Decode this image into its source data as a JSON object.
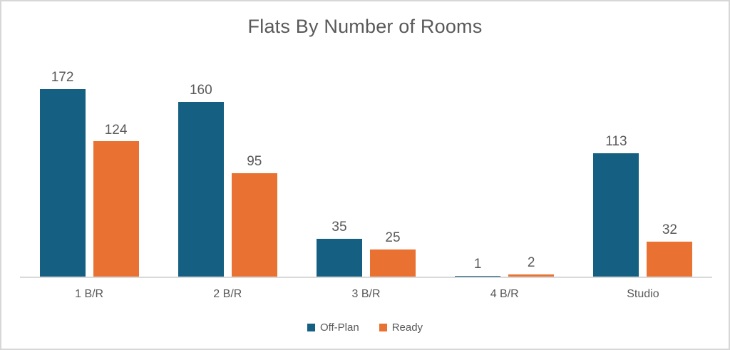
{
  "chart_data": {
    "type": "bar",
    "title": "Flats By Number of Rooms",
    "categories": [
      "1 B/R",
      "2 B/R",
      "3 B/R",
      "4 B/R",
      "Studio"
    ],
    "series": [
      {
        "name": "Off-Plan",
        "color": "#156082",
        "values": [
          172,
          160,
          35,
          1,
          113
        ]
      },
      {
        "name": "Ready",
        "color": "#E97132",
        "values": [
          124,
          95,
          25,
          2,
          32
        ]
      }
    ],
    "xlabel": "",
    "ylabel": "",
    "ylim": [
      0,
      180
    ],
    "grid": false,
    "legend_position": "bottom",
    "data_labels": true
  },
  "colors": {
    "text": "#595959",
    "axis_line": "#D9D9D9",
    "background": "#FFFFFF",
    "border": "#D7D7D7"
  }
}
